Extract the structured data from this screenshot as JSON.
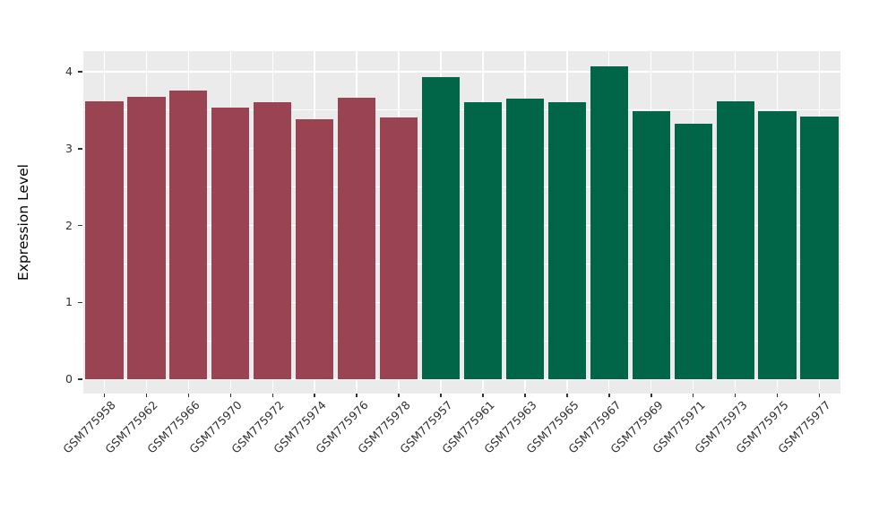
{
  "chart_data": {
    "type": "bar",
    "title": "",
    "xlabel": "",
    "ylabel": "Expression Level",
    "ylim": [
      0,
      4.27
    ],
    "y_major_ticks": [
      0,
      1,
      2,
      3,
      4
    ],
    "y_minor_ticks": [
      0.5,
      1.5,
      2.5,
      3.5
    ],
    "grid": "white major and minor gridlines on grey panel",
    "legend_position": "none",
    "panel_background": "#EBEBEB",
    "gridline_color": "#FFFFFF",
    "tick_color": "#333333",
    "groups": [
      {
        "name": "group-1-maroon",
        "color": "#9A4352",
        "bars": [
          {
            "label": "GSM775958",
            "value": 3.61
          },
          {
            "label": "GSM775962",
            "value": 3.67
          },
          {
            "label": "GSM775966",
            "value": 3.76
          },
          {
            "label": "GSM775970",
            "value": 3.53
          },
          {
            "label": "GSM775972",
            "value": 3.6
          },
          {
            "label": "GSM775974",
            "value": 3.38
          },
          {
            "label": "GSM775976",
            "value": 3.66
          },
          {
            "label": "GSM775978",
            "value": 3.4
          }
        ]
      },
      {
        "name": "group-2-green",
        "color": "#016647",
        "bars": [
          {
            "label": "GSM775957",
            "value": 3.93
          },
          {
            "label": "GSM775961",
            "value": 3.6
          },
          {
            "label": "GSM775963",
            "value": 3.65
          },
          {
            "label": "GSM775965",
            "value": 3.6
          },
          {
            "label": "GSM775967",
            "value": 4.07
          },
          {
            "label": "GSM775969",
            "value": 3.49
          },
          {
            "label": "GSM775971",
            "value": 3.32
          },
          {
            "label": "GSM775973",
            "value": 3.62
          },
          {
            "label": "GSM775975",
            "value": 3.49
          },
          {
            "label": "GSM775977",
            "value": 3.42
          }
        ]
      }
    ]
  }
}
